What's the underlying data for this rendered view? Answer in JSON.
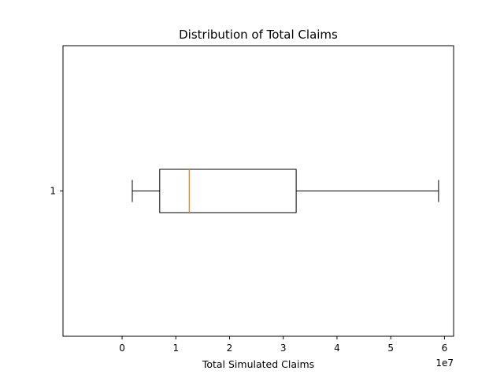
{
  "chart_data": {
    "type": "boxplot",
    "title": "Distribution of Total Claims",
    "xlabel": "Total Simulated Claims",
    "ylabel": "",
    "orientation": "horizontal",
    "x_scale_label": "1e7",
    "xlim": [
      -1.1,
      6.17
    ],
    "x_ticks": [
      0,
      1,
      2,
      3,
      4,
      5,
      6
    ],
    "x_tick_labels": [
      "0",
      "1",
      "2",
      "3",
      "4",
      "5",
      "6"
    ],
    "y_ticks": [
      1
    ],
    "y_tick_labels": [
      "1"
    ],
    "ylim": [
      0.5,
      1.5
    ],
    "grid": false,
    "boxes": [
      {
        "label": "1",
        "whisker_low": 0.19,
        "q1": 0.7,
        "median": 1.25,
        "q3": 3.24,
        "whisker_high": 5.89
      }
    ],
    "colors": {
      "box": "#000000",
      "median": "#ff7f0e",
      "frame": "#000000"
    }
  }
}
